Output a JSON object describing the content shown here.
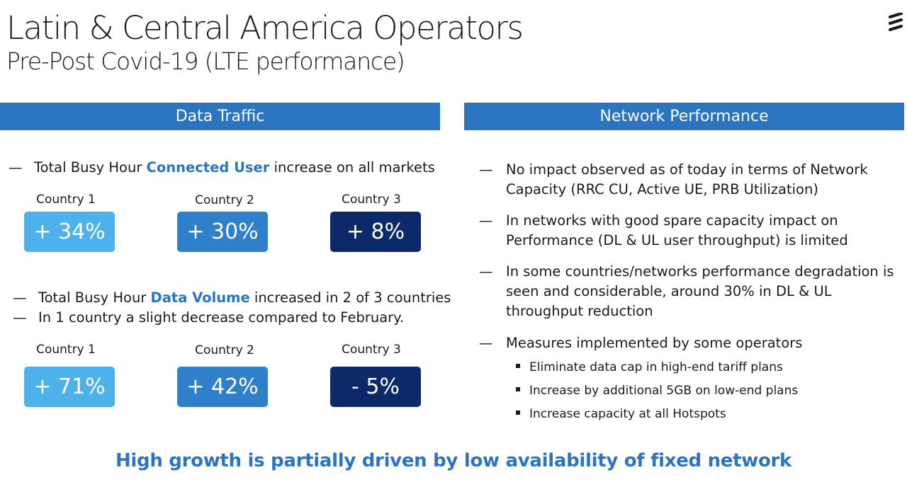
{
  "title": "Latin & Central America Operators",
  "subtitle": "Pre-Post Covid-19 (LTE performance)",
  "logo_icon": "ericsson-logo-icon",
  "left": {
    "header": "Data Traffic",
    "group1": {
      "dash": "—",
      "text_before": "Total Busy Hour ",
      "highlight": "Connected User",
      "text_after": " increase on all markets",
      "stats": [
        {
          "label": "Country 1",
          "value": "+ 34%"
        },
        {
          "label": "Country 2",
          "value": "+ 30%"
        },
        {
          "label": "Country 3",
          "value": "+ 8%"
        }
      ]
    },
    "group2": {
      "dash": "—",
      "text_before": "Total Busy Hour ",
      "highlight": "Data Volume",
      "text_after": " increased in 2 of 3 countries",
      "line2": "In 1 country a slight decrease compared to February.",
      "stats": [
        {
          "label": "Country 1",
          "value": "+ 71%"
        },
        {
          "label": "Country 2",
          "value": "+ 42%"
        },
        {
          "label": "Country 3",
          "value": "- 5%"
        }
      ]
    }
  },
  "right": {
    "header": "Network Performance",
    "dash": "—",
    "items": [
      "No impact observed as of today in terms of Network Capacity (RRC CU, Active UE, PRB Utilization)",
      "In networks with good spare capacity impact on Performance (DL & UL user throughput) is limited",
      "In some countries/networks performance degradation is seen and considerable, around 30% in DL & UL throughput reduction",
      "Measures implemented by some operators"
    ],
    "sub_items": [
      "Eliminate data cap in high-end tariff plans",
      "Increase by additional 5GB on low-end plans",
      "Increase capacity at all Hotspots"
    ]
  },
  "footer": "High growth is partially driven by low availability of fixed network",
  "colors": {
    "accent": "#2a74c0",
    "country1": "#4db2ec",
    "country2": "#2f7fca",
    "country3": "#0c2a6a"
  }
}
